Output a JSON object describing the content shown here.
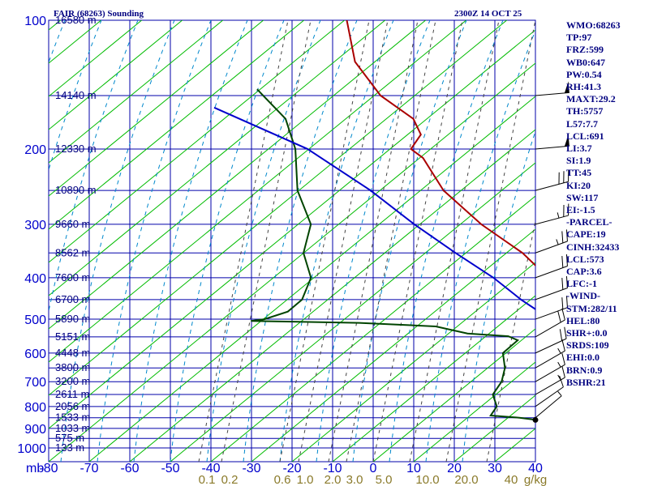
{
  "header": {
    "title": "FAIR (68263) Sounding",
    "time": "2300Z 14 OCT 25"
  },
  "indices": [
    "WMO:68263",
    "TP:97",
    "FRZ:599",
    "WB0:647",
    "PW:0.54",
    "RH:41.3",
    "MAXT:29.2",
    "TH:5757",
    "L57:7.7",
    "LCL:691",
    "LI:3.7",
    "SI:1.9",
    "TT:45",
    "KI:20",
    "SW:117",
    "EI:-1.5",
    "-PARCEL-",
    "CAPE:19",
    "CINH:32433",
    "LCL:573",
    "CAP:3.6",
    "LFC:-1",
    "-WIND-",
    "STM:282/11",
    "HEL:80",
    "SHR+:0.0",
    "SRDS:109",
    "EHI:0.0",
    "BRN:0.9",
    "BSHR:21"
  ],
  "colors": {
    "grid": "#0000aa",
    "dry_adiabat": "#00bb00",
    "moist_adiabat": "#0088cc",
    "mixing_ratio": "#444444",
    "temperature": "#aa0000",
    "dewpoint": "#004400",
    "parcel": "#0000cc"
  },
  "chart_data": {
    "type": "skew-t",
    "title": "FAIR (68263) Sounding",
    "xlabel": "mb",
    "xlim": [
      -80,
      0
    ],
    "pressure_ticks": [
      100,
      200,
      300,
      400,
      500,
      600,
      700,
      800,
      900,
      1000
    ],
    "pressure_ticks_labeled": [
      {
        "p": 100,
        "label": "100"
      },
      {
        "p": 200,
        "label": "200"
      },
      {
        "p": 300,
        "label": "300"
      },
      {
        "p": 400,
        "label": "400"
      },
      {
        "p": 500,
        "label": "500"
      },
      {
        "p": 600,
        "label": "600"
      },
      {
        "p": 700,
        "label": "700"
      },
      {
        "p": 800,
        "label": "800"
      },
      {
        "p": 900,
        "label": "900"
      },
      {
        "p": 1000,
        "label": "1000"
      }
    ],
    "temp_ticks": [
      {
        "t": -80,
        "label": "-80"
      },
      {
        "t": -70,
        "label": "-70"
      },
      {
        "t": -60,
        "label": "-60"
      },
      {
        "t": -50,
        "label": "-50"
      },
      {
        "t": -40,
        "label": "-40"
      },
      {
        "t": -30,
        "label": "-30"
      },
      {
        "t": -20,
        "label": "-20"
      },
      {
        "t": -10,
        "label": "-10"
      },
      {
        "t": 0,
        "label": "0"
      },
      {
        "t": 10,
        "label": "10"
      },
      {
        "t": 20,
        "label": "20"
      },
      {
        "t": 30,
        "label": "30"
      },
      {
        "t": 40,
        "label": "40"
      }
    ],
    "mixing_ratio_labels": [
      "0.1",
      "0.2",
      "0.6",
      "1.0",
      "2.0",
      "3.0",
      "5.0",
      "10.0",
      "20.0",
      "40",
      "g/kg"
    ],
    "height_levels": [
      {
        "p": 100,
        "label": "16580 m"
      },
      {
        "p": 150,
        "label": "14140 m"
      },
      {
        "p": 200,
        "label": "12330 m"
      },
      {
        "p": 250,
        "label": "10890 m"
      },
      {
        "p": 300,
        "label": "9660 m"
      },
      {
        "p": 350,
        "label": "8562 m"
      },
      {
        "p": 400,
        "label": "7600 m"
      },
      {
        "p": 450,
        "label": "6700 m"
      },
      {
        "p": 500,
        "label": "5890 m"
      },
      {
        "p": 550,
        "label": "5151 m"
      },
      {
        "p": 600,
        "label": "4448 m"
      },
      {
        "p": 650,
        "label": "3800 m"
      },
      {
        "p": 700,
        "label": "3200 m"
      },
      {
        "p": 750,
        "label": "2611 m"
      },
      {
        "p": 800,
        "label": "2056 m"
      },
      {
        "p": 850,
        "label": "1533 m"
      },
      {
        "p": 900,
        "label": "1033 m"
      },
      {
        "p": 950,
        "label": "575 m"
      },
      {
        "p": 1000,
        "label": "133 m"
      }
    ],
    "series": [
      {
        "name": "temperature",
        "points": [
          [
            100,
            -79
          ],
          [
            125,
            -73
          ],
          [
            150,
            -65
          ],
          [
            170,
            -57
          ],
          [
            185,
            -54
          ],
          [
            200,
            -54
          ],
          [
            210,
            -51
          ],
          [
            250,
            -44
          ],
          [
            300,
            -34
          ],
          [
            350,
            -24
          ],
          [
            400,
            -17
          ],
          [
            450,
            -9
          ],
          [
            470,
            -7
          ],
          [
            500,
            -4
          ],
          [
            530,
            -6
          ],
          [
            550,
            -5
          ],
          [
            600,
            -1
          ],
          [
            650,
            4
          ],
          [
            700,
            9
          ],
          [
            750,
            14
          ],
          [
            800,
            19
          ],
          [
            840,
            23
          ],
          [
            855,
            22
          ],
          [
            860,
            18
          ]
        ]
      },
      {
        "name": "dewpoint",
        "points": [
          [
            145,
            -86
          ],
          [
            170,
            -78
          ],
          [
            200,
            -73
          ],
          [
            250,
            -68
          ],
          [
            300,
            -62
          ],
          [
            350,
            -60
          ],
          [
            400,
            -56
          ],
          [
            450,
            -55
          ],
          [
            480,
            -56
          ],
          [
            500,
            -59
          ],
          [
            505,
            -61
          ],
          [
            510,
            -43
          ],
          [
            520,
            -30
          ],
          [
            540,
            -24
          ],
          [
            548,
            -17
          ],
          [
            560,
            -15
          ],
          [
            600,
            -16
          ],
          [
            650,
            -14
          ],
          [
            700,
            -13
          ],
          [
            750,
            -13
          ],
          [
            800,
            -11
          ],
          [
            840,
            -11
          ],
          [
            850,
            -6
          ],
          [
            860,
            -3
          ]
        ]
      },
      {
        "name": "parcel",
        "points": [
          [
            160,
            -91
          ],
          [
            200,
            -71
          ],
          [
            250,
            -56
          ],
          [
            300,
            -45
          ],
          [
            350,
            -35
          ],
          [
            400,
            -26
          ],
          [
            450,
            -19
          ],
          [
            500,
            -12
          ],
          [
            550,
            -6
          ],
          [
            600,
            -1
          ],
          [
            650,
            4
          ],
          [
            700,
            10
          ],
          [
            750,
            15
          ],
          [
            800,
            20
          ],
          [
            850,
            24
          ],
          [
            860,
            25
          ]
        ]
      }
    ],
    "wind_barbs": [
      {
        "p": 150,
        "dir": 265,
        "speed": 50
      },
      {
        "p": 200,
        "dir": 265,
        "speed": 50
      },
      {
        "p": 250,
        "dir": 255,
        "speed": 30
      },
      {
        "p": 300,
        "dir": 255,
        "speed": 25
      },
      {
        "p": 350,
        "dir": 250,
        "speed": 25
      },
      {
        "p": 400,
        "dir": 250,
        "speed": 20
      },
      {
        "p": 450,
        "dir": 250,
        "speed": 20
      },
      {
        "p": 500,
        "dir": 250,
        "speed": 20
      },
      {
        "p": 550,
        "dir": 240,
        "speed": 20
      },
      {
        "p": 600,
        "dir": 245,
        "speed": 20
      },
      {
        "p": 650,
        "dir": 240,
        "speed": 15
      },
      {
        "p": 700,
        "dir": 240,
        "speed": 15
      },
      {
        "p": 750,
        "dir": 240,
        "speed": 15
      },
      {
        "p": 800,
        "dir": 235,
        "speed": 10
      },
      {
        "p": 850,
        "dir": 230,
        "speed": 5
      },
      {
        "p": 860,
        "dir": 0,
        "speed": 0
      }
    ]
  }
}
